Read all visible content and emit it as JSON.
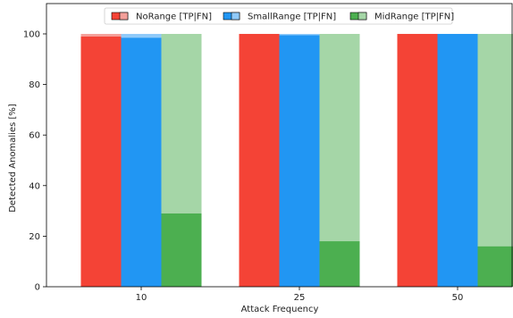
{
  "chart_data": {
    "type": "bar",
    "xlabel": "Attack Frequency",
    "ylabel": "Detected Anomalies [%]",
    "ylim": [
      0,
      112
    ],
    "yticks": [
      0,
      20,
      40,
      60,
      80,
      100
    ],
    "categories": [
      "10",
      "25",
      "50"
    ],
    "series": [
      {
        "name": "NoRange [TP|FN]",
        "tp": [
          99,
          100,
          100
        ],
        "fn": [
          1,
          0,
          0
        ],
        "color": "#f44336",
        "light_color": "#f4a09a"
      },
      {
        "name": "SmallRange [TP|FN]",
        "tp": [
          98.5,
          99.5,
          100
        ],
        "fn": [
          1.5,
          0.5,
          0
        ],
        "color": "#2196f3",
        "light_color": "#90caf9"
      },
      {
        "name": "MidRange [TP|FN]",
        "tp": [
          29,
          18,
          16
        ],
        "fn": [
          71,
          82,
          84
        ],
        "color": "#4caf50",
        "light_color": "#a5d6a7"
      }
    ],
    "grid": false,
    "legend_position": "top-center"
  }
}
